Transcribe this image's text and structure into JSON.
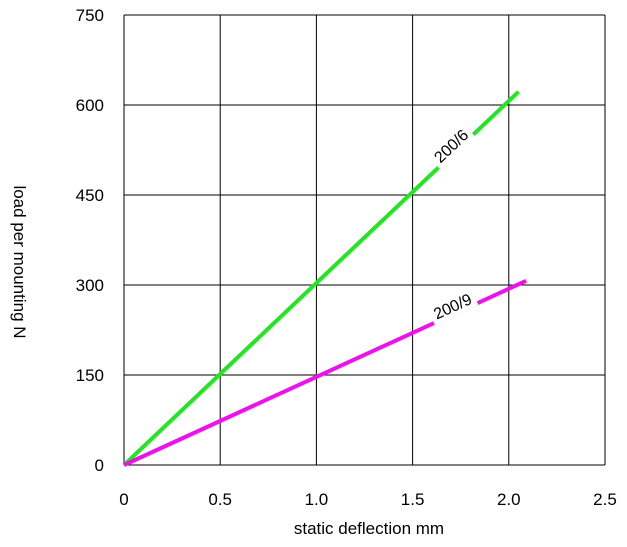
{
  "chart_data": {
    "type": "line",
    "title": "",
    "xlabel": "static deflection mm",
    "ylabel": "load per mounting N",
    "xlim": [
      0,
      2.5
    ],
    "ylim": [
      0,
      750
    ],
    "x_ticks": [
      {
        "value": 0,
        "label": "0"
      },
      {
        "value": 0.5,
        "label": "0.5"
      },
      {
        "value": 1.0,
        "label": "1.0"
      },
      {
        "value": 1.5,
        "label": "1.5"
      },
      {
        "value": 2.0,
        "label": "2.0"
      },
      {
        "value": 2.5,
        "label": "2.5"
      }
    ],
    "y_ticks": [
      {
        "value": 0,
        "label": "0"
      },
      {
        "value": 150,
        "label": "150"
      },
      {
        "value": 300,
        "label": "300"
      },
      {
        "value": 450,
        "label": "450"
      },
      {
        "value": 600,
        "label": "600"
      },
      {
        "value": 750,
        "label": "750"
      }
    ],
    "grid": true,
    "legend": "none",
    "series": [
      {
        "name": "200/6",
        "color": "#22e622",
        "x": [
          0,
          2.05
        ],
        "y": [
          0,
          622
        ],
        "label_at": {
          "x": 1.72,
          "y": 525
        }
      },
      {
        "name": "200/9",
        "color": "#ee11ee",
        "x": [
          0,
          2.09
        ],
        "y": [
          0,
          307
        ],
        "label_at": {
          "x": 1.72,
          "y": 256
        }
      }
    ]
  }
}
